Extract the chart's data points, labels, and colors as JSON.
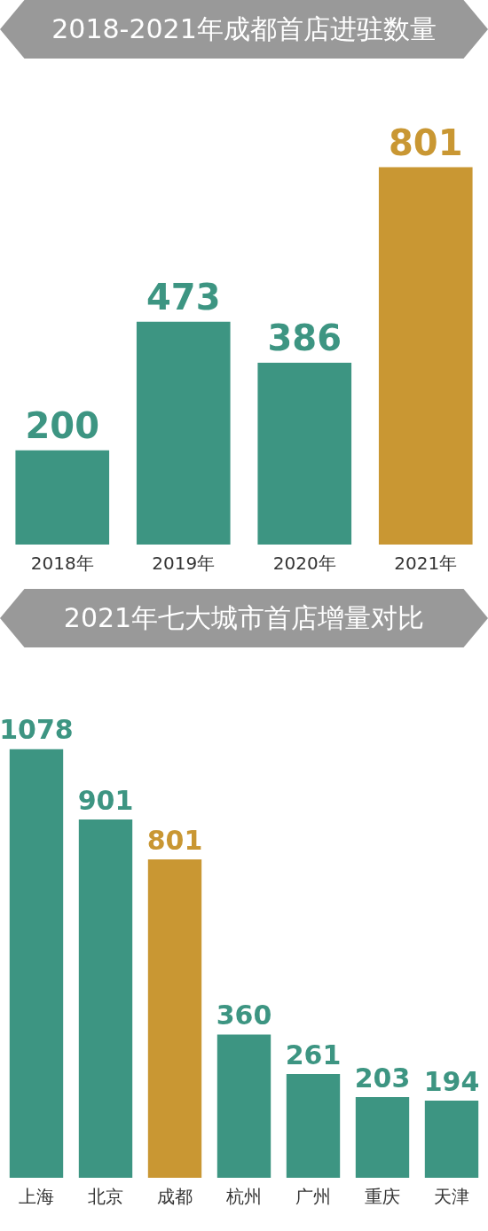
{
  "chart_data": [
    {
      "type": "bar",
      "title": "2018-2021年成都首店进驻数量",
      "categories": [
        "2018年",
        "2019年",
        "2020年",
        "2021年"
      ],
      "values": [
        200,
        473,
        386,
        801
      ],
      "colors": [
        "#3d9582",
        "#3d9582",
        "#3d9582",
        "#c99733"
      ],
      "data_labels": true,
      "tick_labels": "x"
    },
    {
      "type": "bar",
      "title": "2021年七大城市首店增量对比",
      "categories": [
        "上海",
        "北京",
        "成都",
        "杭州",
        "广州",
        "重庆",
        "天津"
      ],
      "values": [
        1078,
        901,
        801,
        360,
        261,
        203,
        194
      ],
      "colors": [
        "#3d9582",
        "#3d9582",
        "#c99733",
        "#3d9582",
        "#3d9582",
        "#3d9582",
        "#3d9582"
      ],
      "data_labels": true,
      "tick_labels": "x"
    }
  ]
}
